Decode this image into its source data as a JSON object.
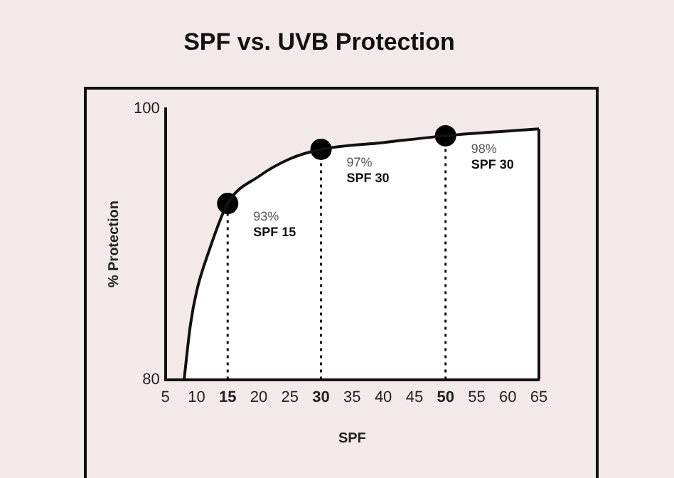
{
  "chart_data": {
    "type": "line",
    "title": "SPF vs. UVB Protection",
    "xlabel": "SPF",
    "ylabel": "% Protection",
    "xlim": [
      5,
      65
    ],
    "xticks": [
      5,
      10,
      15,
      20,
      25,
      30,
      35,
      40,
      45,
      50,
      55,
      60,
      65
    ],
    "ylim": [
      80,
      100
    ],
    "yticks": [
      80,
      100
    ],
    "grid": false,
    "legend": false,
    "series": [
      {
        "color": "#111111",
        "marker": "none",
        "x": [
          8,
          9,
          10,
          12,
          15,
          20,
          25,
          30,
          40,
          50,
          65
        ],
        "values": [
          80,
          84,
          86.5,
          89.5,
          93,
          95,
          96.3,
          97,
          97.5,
          98,
          98.5
        ]
      },
      {
        "type": "scatter",
        "color": "#000000",
        "marker": "circle",
        "x": [
          15,
          30,
          50
        ],
        "values": [
          93,
          97,
          98
        ]
      }
    ],
    "ref_lines": [
      {
        "axis": "x",
        "value": 15,
        "line_style": "dotted",
        "color": "#111111"
      },
      {
        "axis": "x",
        "value": 30,
        "line_style": "dotted",
        "color": "#111111"
      },
      {
        "axis": "x",
        "value": 50,
        "line_style": "dotted",
        "color": "#111111"
      }
    ],
    "annotations": [
      {
        "text": "93%\nSPF 15",
        "x": 15,
        "y": 93
      },
      {
        "text": "97%\nSPF 30",
        "x": 30,
        "y": 97
      },
      {
        "text": "98%\nSPF 30",
        "x": 50,
        "y": 98
      }
    ]
  }
}
